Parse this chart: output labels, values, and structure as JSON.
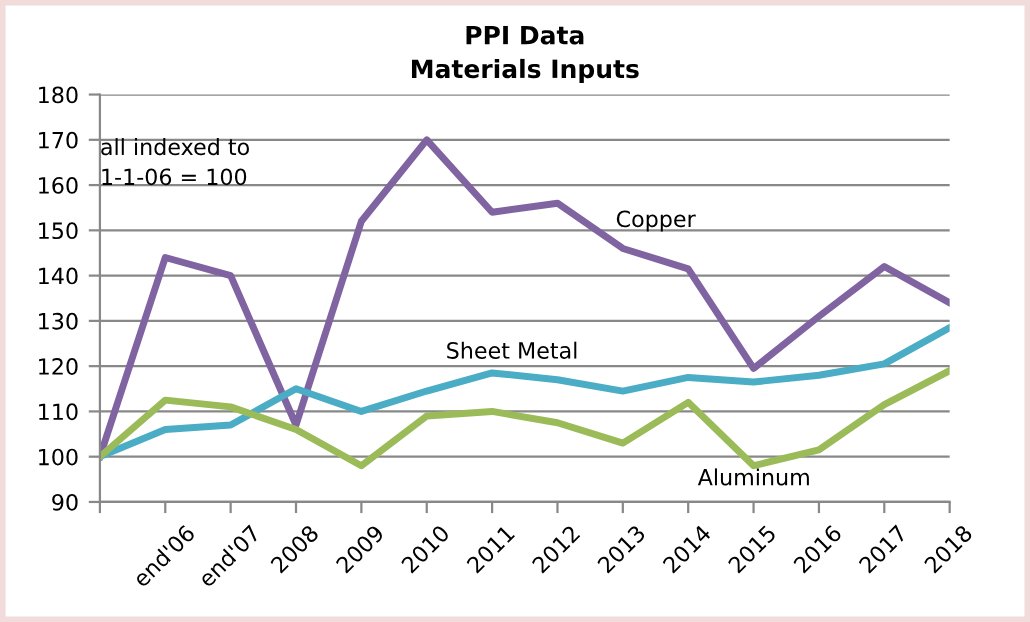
{
  "chart_data": {
    "type": "line",
    "title": "PPI Data\nMaterials Inputs",
    "categories": [
      null,
      "end'06",
      "end'07",
      "2008",
      "2009",
      "2010",
      "2011",
      "2012",
      "2013",
      "2014",
      "2015",
      "2016",
      "2017",
      "2018"
    ],
    "series": [
      {
        "name": "Copper",
        "color": "#8064a2",
        "values": [
          100,
          144,
          140,
          107,
          152,
          170,
          154,
          156,
          146,
          141.5,
          119.5,
          131,
          142,
          134
        ]
      },
      {
        "name": "Sheet Metal",
        "color": "#4bacc6",
        "values": [
          100,
          106,
          107,
          115,
          110,
          114.5,
          118.5,
          117,
          114.5,
          117.5,
          116.5,
          118,
          120.5,
          128.5
        ]
      },
      {
        "name": "Aluminum",
        "color": "#9bbb59",
        "values": [
          100,
          112.5,
          111,
          106,
          98,
          109,
          110,
          107.5,
          103,
          112,
          98,
          101.5,
          111.5,
          119
        ]
      }
    ],
    "ylim": [
      90,
      180
    ],
    "yticks": [
      90,
      100,
      110,
      120,
      130,
      140,
      150,
      160,
      170,
      180
    ],
    "grid": "y",
    "legend": false,
    "marker": "none",
    "line_style": "solid",
    "annotations": [
      "all indexed to\n1-1-06 = 100"
    ]
  }
}
